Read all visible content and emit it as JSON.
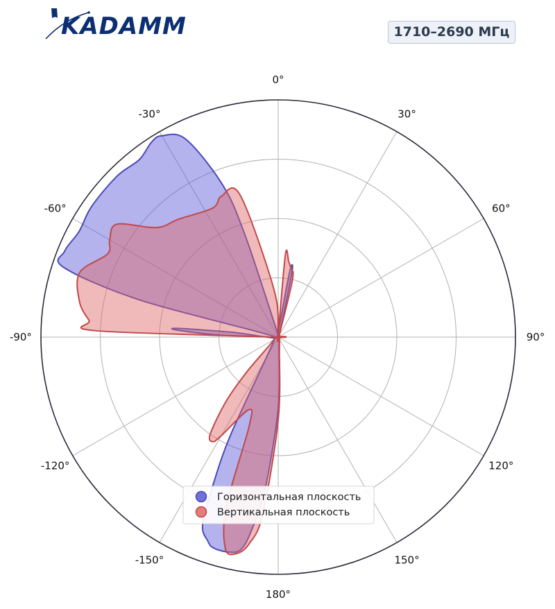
{
  "logo": {
    "text": "KADAMM"
  },
  "badge": {
    "label": "1710–2690 МГц"
  },
  "chart_data": {
    "type": "polar",
    "theta_direction": "clockwise",
    "theta_zero": "top",
    "theta_ticks": [
      "0°",
      "30°",
      "60°",
      "90°",
      "120°",
      "150°",
      "180°",
      "-150°",
      "-120°",
      "-90°",
      "-60°",
      "-30°"
    ],
    "r_range": [
      0,
      1
    ],
    "r_grid": [
      0.25,
      0.5,
      0.75,
      1.0
    ],
    "grid": true,
    "legend_position": "bottom-center",
    "series": [
      {
        "name": "Горизонтальная плоскость",
        "color": "#5a57d6",
        "edge": "#4a48b8",
        "points": [
          [
            0,
            0.02
          ],
          [
            10,
            0.28
          ],
          [
            12,
            0.28
          ],
          [
            15,
            0.05
          ],
          [
            30,
            0.01
          ],
          [
            90,
            0.01
          ],
          [
            150,
            0.01
          ],
          [
            175,
            0.05
          ],
          [
            180,
            0.3
          ],
          [
            185,
            0.65
          ],
          [
            188,
            0.83
          ],
          [
            190,
            0.91
          ],
          [
            193,
            0.93
          ],
          [
            197,
            0.93
          ],
          [
            199,
            0.91
          ],
          [
            202,
            0.85
          ],
          [
            204,
            0.66
          ],
          [
            206,
            0.45
          ],
          [
            210,
            0.1
          ],
          [
            240,
            0.02
          ],
          [
            270,
            0.03
          ],
          [
            272,
            0.25
          ],
          [
            274,
            0.43
          ],
          [
            275,
            0.42
          ],
          [
            276,
            0.2
          ],
          [
            280,
            0.02
          ],
          [
            285,
            0.6
          ],
          [
            288,
            0.95
          ],
          [
            292,
            0.97
          ],
          [
            298,
            0.95
          ],
          [
            305,
            0.96
          ],
          [
            315,
            0.96
          ],
          [
            322,
            0.95
          ],
          [
            327,
            0.98
          ],
          [
            330,
            0.98
          ],
          [
            335,
            0.92
          ],
          [
            340,
            0.68
          ],
          [
            342,
            0.45
          ],
          [
            345,
            0.05
          ],
          [
            355,
            0.01
          ]
        ]
      },
      {
        "name": "Вертикальная плоскость",
        "color": "#e06666",
        "edge": "#c04848",
        "points": [
          [
            0,
            0.01
          ],
          [
            5,
            0.35
          ],
          [
            8,
            0.32
          ],
          [
            10,
            0.3
          ],
          [
            14,
            0.25
          ],
          [
            30,
            0.01
          ],
          [
            150,
            0.01
          ],
          [
            175,
            0.06
          ],
          [
            180,
            0.35
          ],
          [
            185,
            0.75
          ],
          [
            188,
            0.88
          ],
          [
            191,
            0.93
          ],
          [
            194,
            0.92
          ],
          [
            197,
            0.75
          ],
          [
            198,
            0.4
          ],
          [
            202,
            0.33
          ],
          [
            210,
            0.48
          ],
          [
            212,
            0.52
          ],
          [
            215,
            0.5
          ],
          [
            219,
            0.35
          ],
          [
            222,
            0.2
          ],
          [
            240,
            0.02
          ],
          [
            270,
            0.03
          ],
          [
            272,
            0.77
          ],
          [
            275,
            0.8
          ],
          [
            280,
            0.85
          ],
          [
            288,
            0.88
          ],
          [
            296,
            0.8
          ],
          [
            300,
            0.82
          ],
          [
            305,
            0.83
          ],
          [
            312,
            0.69
          ],
          [
            320,
            0.65
          ],
          [
            333,
            0.61
          ],
          [
            338,
            0.64
          ],
          [
            345,
            0.62
          ],
          [
            355,
            0.2
          ],
          [
            358,
            0.02
          ]
        ]
      }
    ]
  }
}
